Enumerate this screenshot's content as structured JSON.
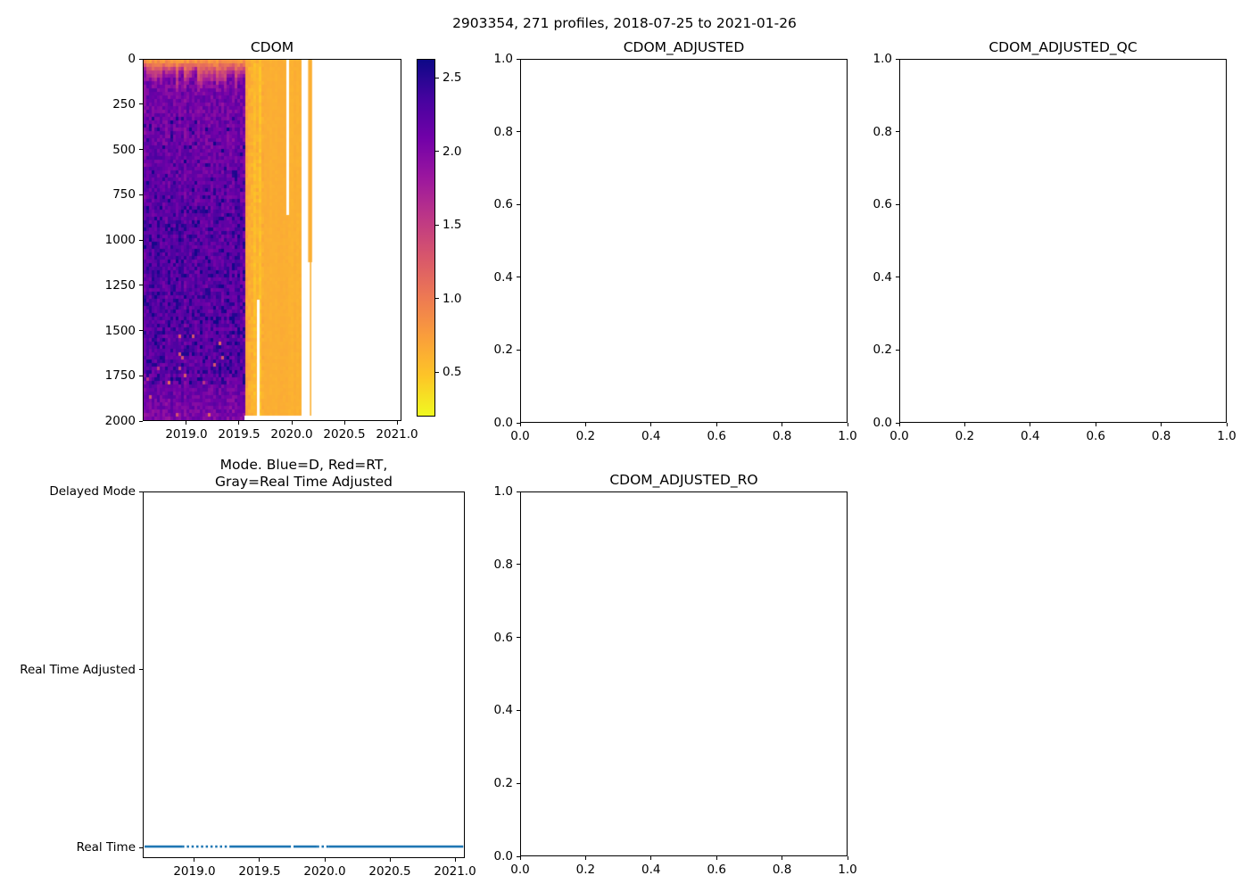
{
  "figure": {
    "suptitle": "2903354, 271 profiles, 2018-07-25 to 2021-01-26",
    "background": "#ffffff",
    "text_color": "#000000",
    "accent_blue": "#1f77b4"
  },
  "chart_data": [
    {
      "id": "cdom",
      "type": "heatmap",
      "title": "CDOM",
      "x": {
        "range": [
          2018.585,
          2021.042
        ],
        "tick_values": [
          2019.0,
          2019.5,
          2020.0,
          2020.5,
          2021.0
        ],
        "labels": [
          "2019.0",
          "2019.5",
          "2020.0",
          "2020.5",
          "2021.0"
        ]
      },
      "y": {
        "range": [
          0,
          2000
        ],
        "tick_values": [
          0,
          250,
          500,
          750,
          1000,
          1250,
          1500,
          1750,
          2000
        ],
        "labels": [
          "0",
          "250",
          "500",
          "750",
          "1000",
          "1250",
          "1500",
          "1750",
          "2000"
        ]
      },
      "colorbar": {
        "colormap": "plasma_r",
        "vmin": 0.2,
        "vmax": 2.63,
        "tick_values": [
          2.5,
          2.0,
          1.5,
          1.0,
          0.5
        ],
        "labels": [
          "2.5",
          "2.0",
          "1.5",
          "1.0",
          "0.5"
        ],
        "gradient_top_to_bottom": [
          "#0d0887",
          "#46039f",
          "#7201a8",
          "#9c179e",
          "#bd3786",
          "#d8576b",
          "#ed7953",
          "#fa9e3b",
          "#fdc527",
          "#f0f921"
        ]
      },
      "regions": {
        "data_start": 2018.585,
        "purple_end": 2019.553,
        "streak_end": 2019.73,
        "orange_end": 2020.085,
        "stripe_start": 2020.158,
        "stripe_end": 2020.196,
        "orange_value": 0.62,
        "deep_value_range": [
          1.8,
          2.62
        ],
        "surface_value_range": [
          0.8,
          1.6
        ]
      },
      "gaps": [
        {
          "t": 2019.672,
          "d0": 1330,
          "d1": 2000
        },
        {
          "t": 2019.952,
          "d0": 0,
          "d1": 860
        }
      ]
    },
    {
      "id": "cdom_adjusted",
      "type": "empty",
      "title": "CDOM_ADJUSTED",
      "x": {
        "range": [
          0,
          1
        ],
        "tick_values": [
          0,
          0.2,
          0.4,
          0.6,
          0.8,
          1.0
        ],
        "labels": [
          "0.0",
          "0.2",
          "0.4",
          "0.6",
          "0.8",
          "1.0"
        ]
      },
      "y": {
        "range": [
          1.0,
          0
        ],
        "tick_values": [
          1.0,
          0.8,
          0.6,
          0.4,
          0.2,
          0
        ],
        "labels": [
          "1.0",
          "0.8",
          "0.6",
          "0.4",
          "0.2",
          "0.0"
        ]
      }
    },
    {
      "id": "cdom_adjusted_qc",
      "type": "empty",
      "title": "CDOM_ADJUSTED_QC",
      "x": {
        "range": [
          0,
          1
        ],
        "tick_values": [
          0,
          0.2,
          0.4,
          0.6,
          0.8,
          1.0
        ],
        "labels": [
          "0.0",
          "0.2",
          "0.4",
          "0.6",
          "0.8",
          "1.0"
        ]
      },
      "y": {
        "range": [
          1.0,
          0
        ],
        "tick_values": [
          1.0,
          0.8,
          0.6,
          0.4,
          0.2,
          0
        ],
        "labels": [
          "1.0",
          "0.8",
          "0.6",
          "0.4",
          "0.2",
          "0.0"
        ]
      }
    },
    {
      "id": "mode",
      "type": "line",
      "title_line1": "Mode. Blue=D, Red=RT,",
      "title_line2": "Gray=Real Time Adjusted",
      "x": {
        "range": [
          2018.603,
          2021.075
        ],
        "tick_values": [
          2019.0,
          2019.5,
          2020.0,
          2020.5,
          2021.0
        ],
        "labels": [
          "2019.0",
          "2019.5",
          "2020.0",
          "2020.5",
          "2021.0"
        ]
      },
      "y": {
        "range": [
          3.0,
          0.94
        ],
        "tick_values": [
          3,
          2,
          1
        ],
        "labels": [
          "Delayed Mode",
          "Real Time Adjusted",
          "Real Time"
        ]
      },
      "series": [
        {
          "name": "mode-real-time",
          "color": "#1f77b4",
          "y_value": 1,
          "segments": [
            {
              "t0": 2018.61,
              "t1": 2018.9,
              "style": "solid"
            },
            {
              "t0": 2018.9,
              "t1": 2019.27,
              "style": "dotted"
            },
            {
              "t0": 2019.27,
              "t1": 2019.74,
              "style": "solid"
            },
            {
              "t0": 2019.76,
              "t1": 2019.94,
              "style": "solid"
            },
            {
              "t0": 2019.94,
              "t1": 2020.03,
              "style": "dotted"
            },
            {
              "t0": 2020.03,
              "t1": 2021.07,
              "style": "solid"
            }
          ]
        }
      ]
    },
    {
      "id": "cdom_adjusted_ro",
      "type": "empty",
      "title": "CDOM_ADJUSTED_RO",
      "x": {
        "range": [
          0,
          1
        ],
        "tick_values": [
          0,
          0.2,
          0.4,
          0.6,
          0.8,
          1.0
        ],
        "labels": [
          "0.0",
          "0.2",
          "0.4",
          "0.6",
          "0.8",
          "1.0"
        ]
      },
      "y": {
        "range": [
          1.0,
          0
        ],
        "tick_values": [
          1.0,
          0.8,
          0.6,
          0.4,
          0.2,
          0
        ],
        "labels": [
          "1.0",
          "0.8",
          "0.6",
          "0.4",
          "0.2",
          "0.0"
        ]
      }
    }
  ]
}
